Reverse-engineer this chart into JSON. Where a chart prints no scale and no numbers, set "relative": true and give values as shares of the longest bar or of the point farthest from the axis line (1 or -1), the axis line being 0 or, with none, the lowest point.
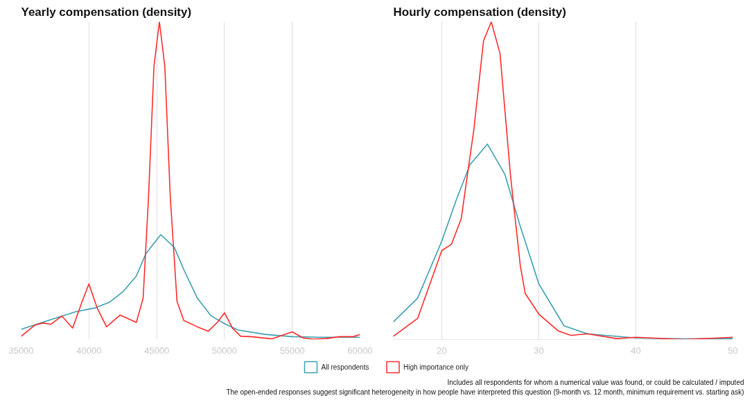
{
  "chart_data": [
    {
      "type": "line",
      "title": "Yearly compensation (density)",
      "relative": true,
      "xlim": [
        35000,
        60000
      ],
      "xticks": [
        35000,
        40000,
        45000,
        50000,
        55000,
        60000
      ],
      "grid": "x",
      "legend": "bottom",
      "line_style": "solid",
      "series": [
        {
          "name": "All respondents",
          "color": "#3a9fb0",
          "x": [
            35000,
            37000,
            39000,
            40500,
            41500,
            42500,
            43500,
            44200,
            45300,
            46300,
            47000,
            48000,
            49000,
            50000,
            51000,
            53000,
            55000,
            57000,
            60000
          ],
          "values": [
            0.032,
            0.06,
            0.087,
            0.1,
            0.117,
            0.15,
            0.2,
            0.27,
            0.33,
            0.29,
            0.22,
            0.13,
            0.075,
            0.05,
            0.03,
            0.016,
            0.009,
            0.007,
            0.007
          ]
        },
        {
          "name": "High importance only",
          "color": "#ff2a2a",
          "x": [
            35000,
            36000,
            36600,
            37200,
            38000,
            38800,
            39500,
            40000,
            40600,
            41300,
            42300,
            43500,
            44000,
            44400,
            44800,
            45200,
            45600,
            46000,
            46500,
            47000,
            48000,
            48800,
            49500,
            50000,
            50600,
            51200,
            52000,
            53500,
            55000,
            55800,
            56500,
            57500,
            58500,
            59500,
            60000
          ],
          "values": [
            0.01,
            0.045,
            0.052,
            0.048,
            0.074,
            0.036,
            0.12,
            0.175,
            0.1,
            0.04,
            0.077,
            0.054,
            0.13,
            0.45,
            0.86,
            1,
            0.86,
            0.45,
            0.12,
            0.06,
            0.04,
            0.026,
            0.055,
            0.084,
            0.035,
            0.01,
            0.009,
            0.002,
            0.024,
            0.005,
            0.001,
            0.003,
            0.009,
            0.009,
            0.016
          ]
        }
      ]
    },
    {
      "type": "line",
      "title": "Hourly compensation (density)",
      "relative": true,
      "xlim": [
        15,
        50
      ],
      "xticks": [
        20,
        30,
        40,
        50
      ],
      "grid": "x",
      "legend": "bottom",
      "line_style": "solid",
      "annotations": [
        "Includes all respondents for whom a numerical value was found, or could be calculated / imputed",
        "The open-ended responses suggest significant heterogeneity in how people have interpreted this question (9-month vs. 12 month, minimum requirement vs. starting ask)"
      ],
      "series": [
        {
          "name": "All respondents",
          "color": "#3a9fb0",
          "x": [
            15,
            17.5,
            20,
            21.5,
            22.9,
            24.7,
            26.5,
            28,
            30,
            32.6,
            35,
            40,
            45,
            50
          ],
          "values": [
            0.055,
            0.13,
            0.31,
            0.44,
            0.55,
            0.615,
            0.52,
            0.365,
            0.175,
            0.043,
            0.018,
            0.005,
            0.002,
            0.003
          ]
        },
        {
          "name": "High importance only",
          "color": "#ff2a2a",
          "x": [
            15,
            17.5,
            20,
            21,
            22,
            23.3,
            24.3,
            25.1,
            26,
            27.1,
            28.1,
            28.6,
            30,
            32,
            33.3,
            35,
            38,
            40,
            45,
            50
          ],
          "values": [
            0.01,
            0.066,
            0.28,
            0.3,
            0.38,
            0.66,
            0.94,
            1,
            0.9,
            0.51,
            0.23,
            0.145,
            0.08,
            0.027,
            0.013,
            0.018,
            0.003,
            0.007,
            0,
            0.007
          ]
        }
      ]
    }
  ]
}
